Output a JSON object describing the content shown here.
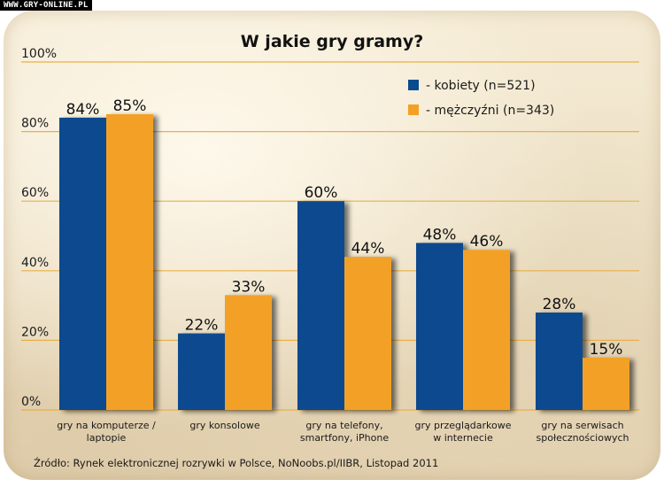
{
  "watermark": "WWW.GRY-ONLINE.PL",
  "source": "Źródło: Rynek elektronicznej rozrywki w Polsce, NoNoobs.pl/IIBR,  Listopad 2011",
  "chart_data": {
    "type": "bar",
    "title": "W jakie gry gramy?",
    "xlabel": "",
    "ylabel": "",
    "ylim": [
      0,
      100
    ],
    "yticks": [
      0,
      20,
      40,
      60,
      80,
      100
    ],
    "ytick_labels": [
      "0%",
      "20%",
      "40%",
      "60%",
      "80%",
      "100%"
    ],
    "grid": true,
    "legend_position": "top-right",
    "categories": [
      [
        "gry na komputerze /",
        "laptopie"
      ],
      [
        "gry konsolowe"
      ],
      [
        "gry na telefony,",
        "smartfony, iPhone"
      ],
      [
        "gry przeglądarkowe",
        "w internecie"
      ],
      [
        "gry na serwisach",
        "społecznościowych"
      ]
    ],
    "series": [
      {
        "name": "- kobiety (n=521)",
        "color": "#0a4a8e",
        "values": [
          84,
          22,
          60,
          48,
          28
        ],
        "labels": [
          "84%",
          "22%",
          "60%",
          "48%",
          "28%"
        ]
      },
      {
        "name": "- mężczyźni (n=343)",
        "color": "#f3a125",
        "values": [
          85,
          33,
          44,
          46,
          15
        ],
        "labels": [
          "85%",
          "33%",
          "44%",
          "46%",
          "15%"
        ]
      }
    ],
    "gridline_color": "#e8b04a"
  }
}
